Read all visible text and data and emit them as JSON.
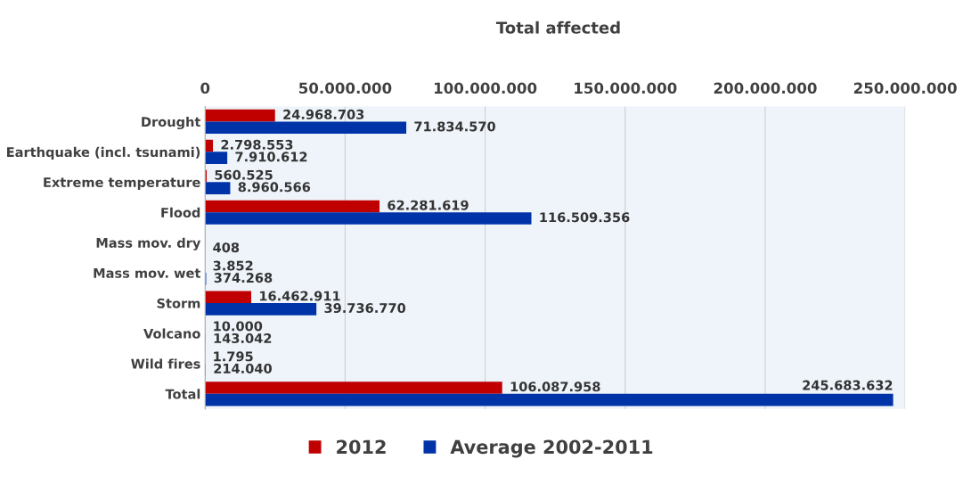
{
  "chart_data": {
    "type": "bar",
    "orientation": "horizontal",
    "title": "Total affected",
    "categories": [
      "Drought",
      "Earthquake (incl. tsunami)",
      "Extreme temperature",
      "Flood",
      "Mass mov. dry",
      "Mass mov. wet",
      "Storm",
      "Volcano",
      "Wild fires",
      "Total"
    ],
    "series": [
      {
        "name": "2012",
        "color": "#c00000",
        "values": [
          24968703,
          2798553,
          560525,
          62281619,
          null,
          3852,
          16462911,
          10000,
          1795,
          106087958
        ],
        "value_labels": [
          "24.968.703",
          "2.798.553",
          "560.525",
          "62.281.619",
          null,
          "3.852",
          "16.462.911",
          "10.000",
          "1.795",
          "106.087.958"
        ]
      },
      {
        "name": "Average 2002-2011",
        "color": "#0033a8",
        "values": [
          71834570,
          7910612,
          8960566,
          116509356,
          408,
          374268,
          39736770,
          143042,
          214040,
          245683632
        ],
        "value_labels": [
          "71.834.570",
          "7.910.612",
          "8.960.566",
          "116.509.356",
          "408",
          "374.268",
          "39.736.770",
          "143.042",
          "214.040",
          "245.683.632"
        ]
      }
    ],
    "xlim": [
      0,
      250000000
    ],
    "xticks": [
      0,
      {
        "value": 50000000,
        "label": "50.000.000"
      },
      {
        "value": 100000000,
        "label": "100.000.000"
      },
      {
        "value": 150000000,
        "label": "150.000.000"
      },
      {
        "value": 200000000,
        "label": "200.000.000"
      },
      {
        "value": 250000000,
        "label": "250.000.000"
      }
    ],
    "grid": "x",
    "legend": "bottom"
  }
}
